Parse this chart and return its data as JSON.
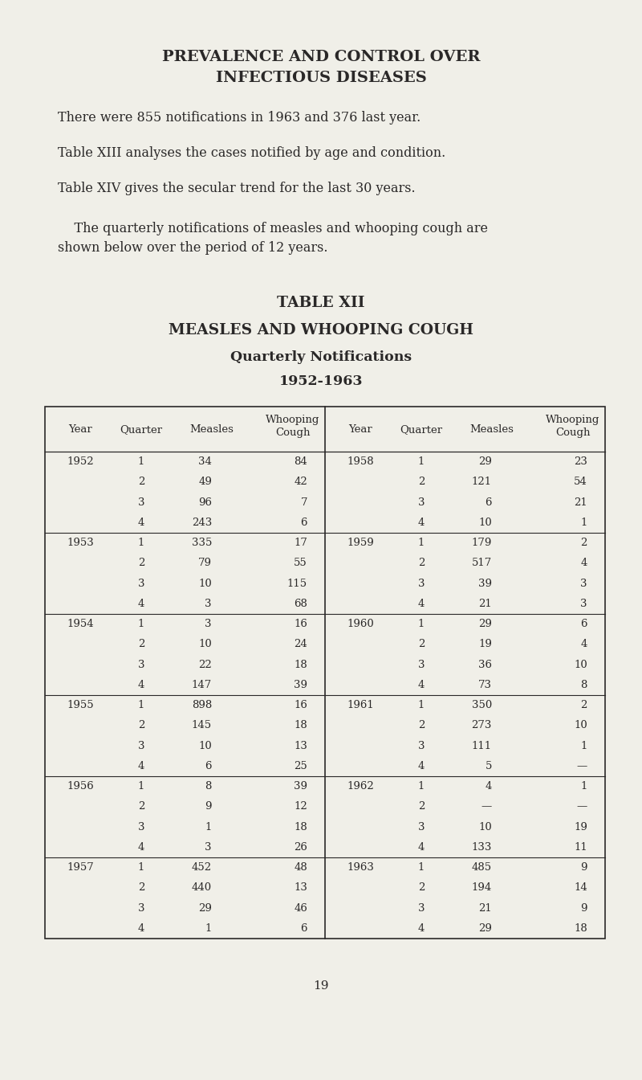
{
  "bg_color": "#f0efe8",
  "text_color": "#2a2828",
  "page_title_line1": "PREVALENCE AND CONTROL OVER",
  "page_title_line2": "INFECTIOUS DISEASES",
  "para1": "There were 855 notifications in 1963 and 376 last year.",
  "para2": "Table XIII analyses the cases notified by age and condition.",
  "para3": "Table XIV gives the secular trend for the last 30 years.",
  "para4a": "    The quarterly notifications of measles and whooping cough are",
  "para4b": "shown below over the period of 12 years.",
  "table_title1": "TABLE XII",
  "table_title2": "MEASLES AND WHOOPING COUGH",
  "table_title3": "Quarterly Notifications",
  "table_title4": "1952-1963",
  "left_data": [
    [
      "1952",
      "1",
      "34",
      "84"
    ],
    [
      "",
      "2",
      "49",
      "42"
    ],
    [
      "",
      "3",
      "96",
      "7"
    ],
    [
      "",
      "4",
      "243",
      "6"
    ],
    [
      "1953",
      "1",
      "335",
      "17"
    ],
    [
      "",
      "2",
      "79",
      "55"
    ],
    [
      "",
      "3",
      "10",
      "115"
    ],
    [
      "",
      "4",
      "3",
      "68"
    ],
    [
      "1954",
      "1",
      "3",
      "16"
    ],
    [
      "",
      "2",
      "10",
      "24"
    ],
    [
      "",
      "3",
      "22",
      "18"
    ],
    [
      "",
      "4",
      "147",
      "39"
    ],
    [
      "1955",
      "1",
      "898",
      "16"
    ],
    [
      "",
      "2",
      "145",
      "18"
    ],
    [
      "",
      "3",
      "10",
      "13"
    ],
    [
      "",
      "4",
      "6",
      "25"
    ],
    [
      "1956",
      "1",
      "8",
      "39"
    ],
    [
      "",
      "2",
      "9",
      "12"
    ],
    [
      "",
      "3",
      "1",
      "18"
    ],
    [
      "",
      "4",
      "3",
      "26"
    ],
    [
      "1957",
      "1",
      "452",
      "48"
    ],
    [
      "",
      "2",
      "440",
      "13"
    ],
    [
      "",
      "3",
      "29",
      "46"
    ],
    [
      "",
      "4",
      "1",
      "6"
    ]
  ],
  "right_data": [
    [
      "1958",
      "1",
      "29",
      "23"
    ],
    [
      "",
      "2",
      "121",
      "54"
    ],
    [
      "",
      "3",
      "6",
      "21"
    ],
    [
      "",
      "4",
      "10",
      "1"
    ],
    [
      "1959",
      "1",
      "179",
      "2"
    ],
    [
      "",
      "2",
      "517",
      "4"
    ],
    [
      "",
      "3",
      "39",
      "3"
    ],
    [
      "",
      "4",
      "21",
      "3"
    ],
    [
      "1960",
      "1",
      "29",
      "6"
    ],
    [
      "",
      "2",
      "19",
      "4"
    ],
    [
      "",
      "3",
      "36",
      "10"
    ],
    [
      "",
      "4",
      "73",
      "8"
    ],
    [
      "1961",
      "1",
      "350",
      "2"
    ],
    [
      "",
      "2",
      "273",
      "10"
    ],
    [
      "",
      "3",
      "111",
      "1"
    ],
    [
      "",
      "4",
      "5",
      "—"
    ],
    [
      "1962",
      "1",
      "4",
      "1"
    ],
    [
      "",
      "2",
      "—",
      "—"
    ],
    [
      "",
      "3",
      "10",
      "19"
    ],
    [
      "",
      "4",
      "133",
      "11"
    ],
    [
      "1963",
      "1",
      "485",
      "9"
    ],
    [
      "",
      "2",
      "194",
      "14"
    ],
    [
      "",
      "3",
      "21",
      "9"
    ],
    [
      "",
      "4",
      "29",
      "18"
    ]
  ],
  "page_number": "19"
}
